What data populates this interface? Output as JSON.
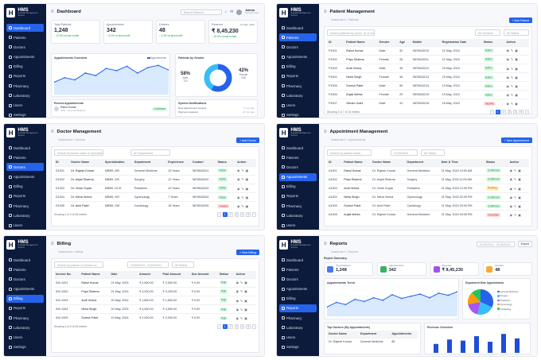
{
  "logo": {
    "title": "HMS",
    "subtitle": "Hospital Management System"
  },
  "nav": [
    "Dashboard",
    "Patients",
    "Doctors",
    "Appointments",
    "Billing",
    "Reports",
    "Pharmacy",
    "Laboratory",
    "Users",
    "Settings"
  ],
  "dash": {
    "title": "Dashboard",
    "search": "Search Patients...",
    "admin": "Admin",
    "admin_role": "Administrator",
    "stats": [
      {
        "label": "Total Patients",
        "value": "1,248",
        "trend": "↑ 12.5%  vs last month"
      },
      {
        "label": "Appointments",
        "value": "342",
        "trend": "↑ 8.2%  vs last month"
      },
      {
        "label": "Doctors",
        "value": "48",
        "trend": "↑ 4.3%  vs last month"
      },
      {
        "label": "Revenue",
        "value": "₹ 8,45,230",
        "trend": "↑ 15.3%  vs last month"
      }
    ],
    "date": "21 May, 2024",
    "overview_title": "Appointments Overview",
    "overview_legend": "Appointments",
    "gender_title": "Patients by Gender",
    "male_pct": "58%",
    "male_label": "Male",
    "male_count": "720",
    "female_pct": "42%",
    "female_label": "Female",
    "female_count": "528",
    "recent_title": "Recent Appointments",
    "recent_name": "Rahul Kumar",
    "recent_detail": "OPD · General Medicine",
    "recent_status": "Confirmed",
    "notif_title": "System Notifications",
    "notif1": "New appointment booked",
    "notif2": "Payment received",
    "notif_time1": "5 min ago",
    "notif_time2": "10 min ago",
    "chart_data": {
      "type": "area",
      "series": [
        {
          "name": "Appointments",
          "values": [
            40,
            55,
            48,
            70,
            62,
            85,
            78,
            92,
            70,
            88,
            95,
            80
          ]
        }
      ],
      "ylim": [
        0,
        100
      ]
    }
  },
  "patients": {
    "title": "Patient Management",
    "crumb": "Dashboard  >  Patients",
    "add": "+ Add Patient",
    "search": "Search patients by name, ID or mobile...",
    "f1": "All Genders",
    "f2": "All Status",
    "cols": [
      "ID",
      "Patient Name",
      "Gender",
      "Age",
      "Mobile",
      "Registration Date",
      "Status",
      "Action"
    ],
    "rows": [
      [
        "P1001",
        "Rahul Kumar",
        "Male",
        "32",
        "9876543210",
        "21 May, 2024",
        "Active"
      ],
      [
        "P1002",
        "Priya Sharma",
        "Female",
        "28",
        "9876543211",
        "21 May, 2024",
        "Active"
      ],
      [
        "P1003",
        "Amit Verma",
        "Male",
        "45",
        "9876543212",
        "20 May, 2024",
        "Active"
      ],
      [
        "P1004",
        "Neha Singh",
        "Female",
        "36",
        "9876543213",
        "20 May, 2024",
        "Active"
      ],
      [
        "P1005",
        "Suresh Patel",
        "Male",
        "50",
        "9876543214",
        "19 May, 2024",
        "Active"
      ],
      [
        "P1006",
        "Anjali Mehta",
        "Female",
        "29",
        "9876543215",
        "19 May, 2024",
        "Active"
      ],
      [
        "P1007",
        "Vikram Joshi",
        "Male",
        "41",
        "9876543216",
        "18 May, 2024",
        "Inactive"
      ]
    ],
    "showing": "Showing 1 to 7 of 15 entries"
  },
  "doctors": {
    "title": "Doctor Management",
    "crumb": "Dashboard  >  Doctors",
    "add": "+ Add Doctor",
    "search": "Search by doctor name or specialization",
    "f1": "All Department",
    "cols": [
      "ID",
      "Doctor Name",
      "Specialization",
      "Department",
      "Experience",
      "Contact",
      "Status",
      "Action"
    ],
    "rows": [
      [
        "D1001",
        "Dr. Rajesh Kumar",
        "MBBS, MD",
        "General Medicine",
        "15 Years",
        "9876543201",
        "Active"
      ],
      [
        "D1002",
        "Dr. Anjali Sharma",
        "MBBS, MS",
        "Surgery",
        "12 Years",
        "9876543202",
        "Active"
      ],
      [
        "D1003",
        "Dr. Vivek Gupta",
        "MBBS, DCH",
        "Pediatrics",
        "10 Years",
        "9876543203",
        "Active"
      ],
      [
        "D1004",
        "Dr. Neha Verma",
        "MBBS, MS",
        "Gynecology",
        "7 Years",
        "9876543204",
        "Active"
      ],
      [
        "D1005",
        "Dr. Amit Patel",
        "MBBS, DM",
        "Cardiology",
        "18 Years",
        "9876543205",
        "Inactive"
      ]
    ],
    "showing": "Showing 1 to 5 of 48 entries"
  },
  "appts": {
    "title": "Appointment Management",
    "crumb": "Dashboard  >  Appointments",
    "add": "+ New Appointment",
    "search": "Search by patient name...",
    "date": "21/05/2024",
    "f1": "All Status",
    "cols": [
      "ID",
      "Patient Name",
      "Doctor Name",
      "Department",
      "Date & Time",
      "Status",
      "Action"
    ],
    "rows": [
      [
        "A1001",
        "Rahul Kumar",
        "Dr. Rajesh Kumar",
        "General Medicine",
        "21 May, 2024 10:00 AM",
        "Confirmed"
      ],
      [
        "A1002",
        "Priya Sharma",
        "Dr. Anjali Sharma",
        "Surgery",
        "21 May, 2024 11:00 AM",
        "Confirmed"
      ],
      [
        "A1003",
        "Amit Verma",
        "Dr. Vivek Gupta",
        "Pediatrics",
        "21 May, 2024 12:00 PM",
        "Pending"
      ],
      [
        "A1004",
        "Neha Singh",
        "Dr. Neha Verma",
        "Gynecology",
        "21 May, 2024 02:00 PM",
        "Confirmed"
      ],
      [
        "A1005",
        "Suresh Patel",
        "Dr. Amit Patel",
        "Cardiology",
        "21 May, 2024 03:00 PM",
        "Confirmed"
      ],
      [
        "A1006",
        "Anjali Mehta",
        "Dr. Rajesh Kumar",
        "General Medicine",
        "21 May, 2024 04:00 PM",
        "Cancelled"
      ]
    ]
  },
  "billing": {
    "title": "Billing",
    "crumb": "Dashboard  >  Billing",
    "add": "+ New Billing",
    "search": "Search by patient or invoice no.",
    "date": "21/05/2024 - 21/05/2024",
    "f1": "All Status",
    "cols": [
      "Invoice No.",
      "Patient Name",
      "Date",
      "Amount",
      "Paid Amount",
      "Due Amount",
      "Status",
      "Action"
    ],
    "rows": [
      [
        "INV-1001",
        "Rahul Kumar",
        "21 May, 2024",
        "₹ 2,500.00",
        "₹ 2,500.00",
        "₹ 0.00",
        "Paid"
      ],
      [
        "INV-1002",
        "Priya Sharma",
        "21 May, 2024",
        "₹ 3,200.00",
        "₹ 3,200.00",
        "₹ 0.00",
        "Paid"
      ],
      [
        "INV-1003",
        "Amit Verma",
        "20 May, 2024",
        "₹ 1,800.00",
        "₹ 1,800.00",
        "₹ 0.00",
        "Paid"
      ],
      [
        "INV-1004",
        "Neha Singh",
        "20 May, 2024",
        "₹ 4,500.00",
        "₹ 4,500.00",
        "₹ 0.00",
        "Paid"
      ],
      [
        "INV-1005",
        "Suresh Patel",
        "19 May, 2024",
        "₹ 2,000.00",
        "₹ 2,000.00",
        "₹ 0.00",
        "Paid"
      ]
    ],
    "showing": "Showing 1 to 5 of 45 entries"
  },
  "reports": {
    "title": "Reports",
    "crumb": "Dashboard  >  Reports",
    "date": "01/05/2024 - 21/05/2024",
    "export": "Export",
    "summary": "Report Summary",
    "cards": [
      {
        "label": "Total Patients",
        "value": "1,248"
      },
      {
        "label": "Appointments",
        "value": "342"
      },
      {
        "label": "Revenue",
        "value": "₹ 8,45,230"
      },
      {
        "label": "Doctors",
        "value": "48"
      }
    ],
    "trend_title": "Appointments Trend",
    "dept_title": "Department Wise Appointments",
    "top_title": "Top Doctors (By Appointments)",
    "rev_title": "Revenue Overview",
    "top_cols": [
      "Doctor Name",
      "Department",
      "Appointments"
    ],
    "top_row": [
      "Dr. Rajesh Kumar",
      "General Medicine",
      "85"
    ],
    "depts": [
      "General Medicine",
      "Surgery",
      "Pediatrics",
      "Gynecology",
      "Cardiology"
    ],
    "chart_data": [
      {
        "type": "line",
        "series": [
          {
            "name": "Appointments",
            "values": [
              30,
              45,
              38,
              55,
              48,
              60,
              52,
              70,
              58,
              65,
              72,
              60,
              75,
              68,
              80
            ]
          }
        ]
      },
      {
        "type": "pie",
        "labels": [
          "General Medicine",
          "Surgery",
          "Pediatrics",
          "Gynecology",
          "Cardiology"
        ],
        "values": [
          32,
          22,
          18,
          16,
          12
        ]
      },
      {
        "type": "bar",
        "values": [
          40,
          60,
          55,
          75,
          50,
          85,
          65
        ]
      }
    ]
  }
}
